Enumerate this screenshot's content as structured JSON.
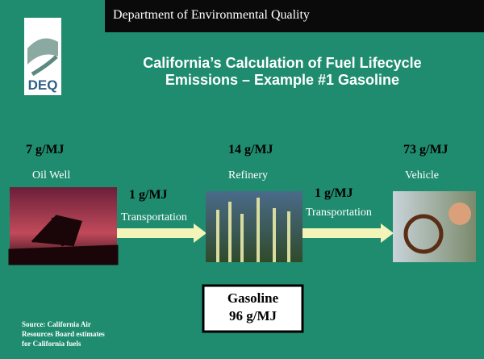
{
  "header": {
    "department": "Department of Environmental Quality",
    "title_lines": [
      "California’s Calculation of Fuel Lifecycle",
      "Emissions – Example #1 Gasoline"
    ]
  },
  "logo": {
    "text": "DEQ"
  },
  "stages": [
    {
      "emission": "7 g/MJ",
      "label": "Oil Well"
    },
    {
      "emission": "14 g/MJ",
      "label": "Refinery"
    },
    {
      "emission": "73 g/MJ",
      "label": "Vehicle"
    }
  ],
  "transport": [
    {
      "emission": "1 g/MJ",
      "label": "Transportation"
    },
    {
      "emission": "1 g/MJ",
      "label": "Transportation"
    }
  ],
  "result": {
    "name": "Gasoline",
    "emission": "96 g/MJ"
  },
  "source": [
    "Source: California Air",
    "Resources Board estimates",
    "for California fuels"
  ]
}
